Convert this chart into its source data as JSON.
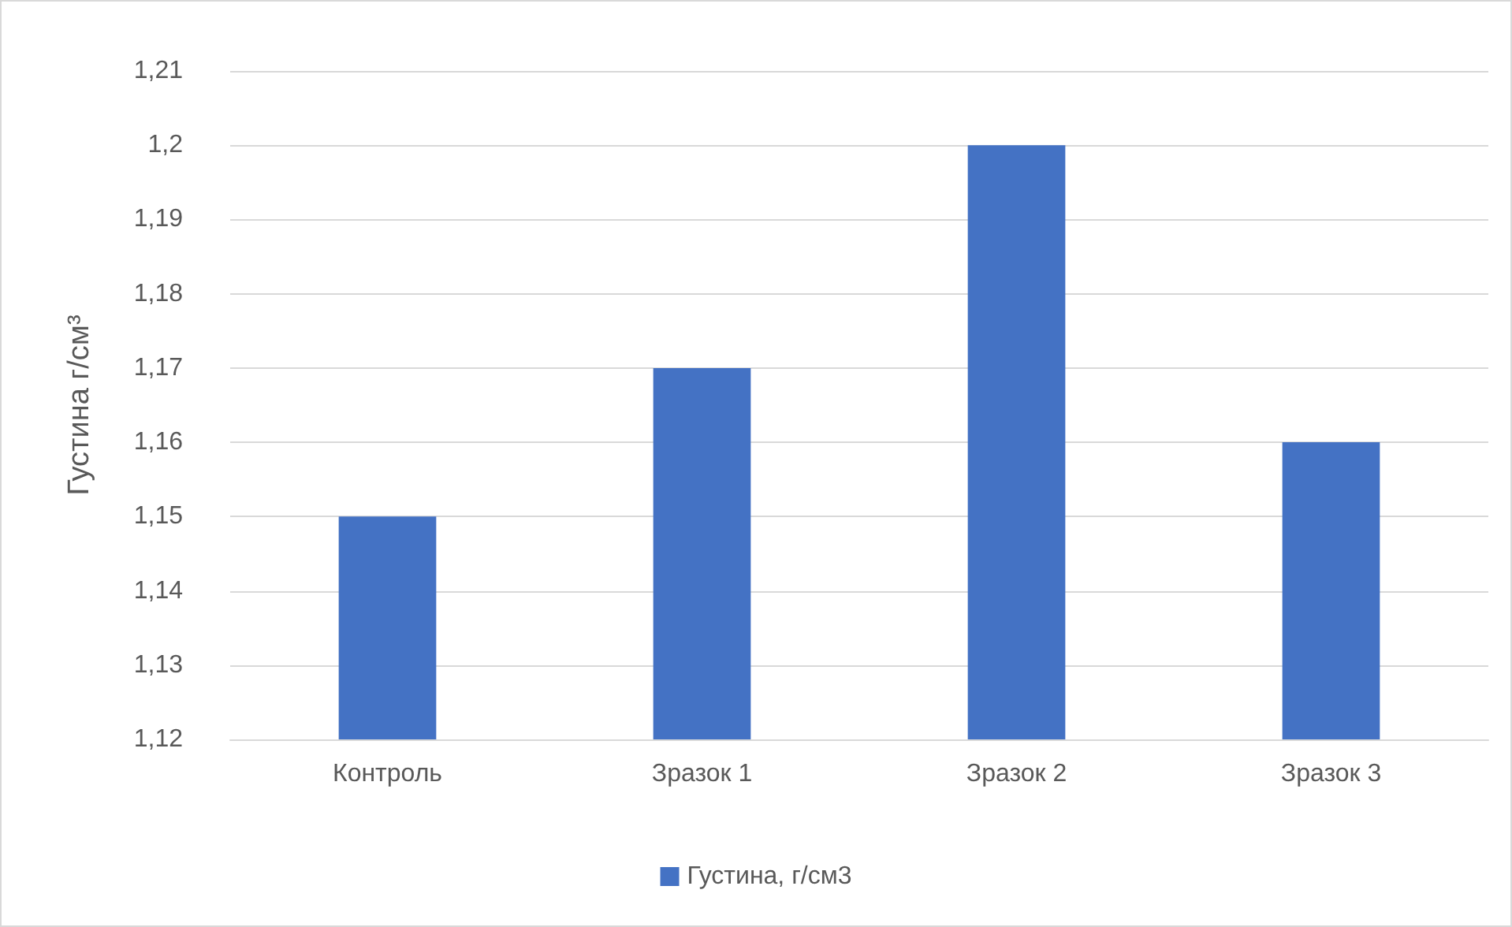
{
  "chart_data": {
    "type": "bar",
    "ylabel": "Густина г/см³",
    "categories": [
      "Контроль",
      "Зразок 1",
      "Зразок 2",
      "Зразок 3"
    ],
    "series": [
      {
        "name": "Густина, г/см3",
        "color": "#4472c4",
        "values": [
          1.15,
          1.17,
          1.2,
          1.16
        ]
      }
    ],
    "ylim": [
      1.12,
      1.21
    ],
    "yticks": [
      {
        "value": 1.12,
        "label": "1,12"
      },
      {
        "value": 1.13,
        "label": "1,13"
      },
      {
        "value": 1.14,
        "label": "1,14"
      },
      {
        "value": 1.15,
        "label": "1,15"
      },
      {
        "value": 1.16,
        "label": "1,16"
      },
      {
        "value": 1.17,
        "label": "1,17"
      },
      {
        "value": 1.18,
        "label": "1,18"
      },
      {
        "value": 1.19,
        "label": "1,19"
      },
      {
        "value": 1.2,
        "label": "1,2"
      },
      {
        "value": 1.21,
        "label": "1,21"
      }
    ],
    "grid": "y",
    "legend": "bottom"
  }
}
